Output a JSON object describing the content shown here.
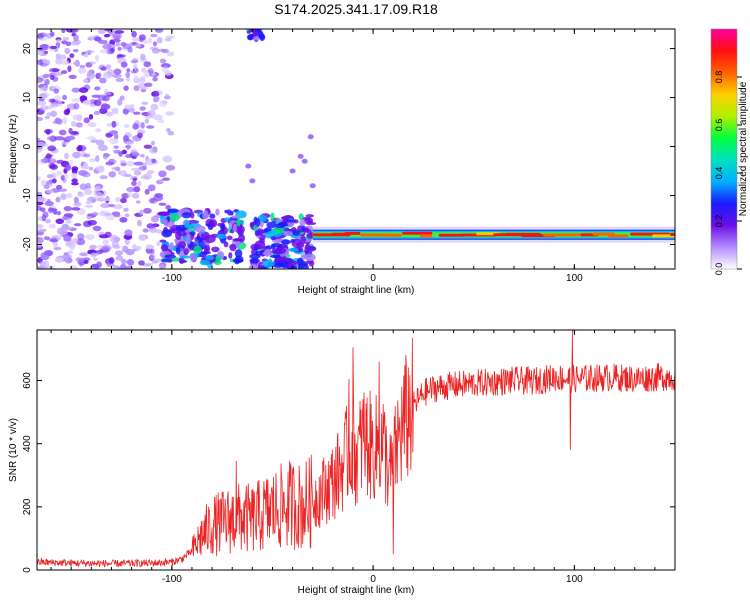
{
  "figure": {
    "title": "S174.2025.341.17.09.R18"
  },
  "chart_data": [
    {
      "type": "heatmap",
      "panel": "spectrogram",
      "xlabel": "Height of straight line (km)",
      "ylabel": "Frequency (Hz)",
      "xlim": [
        -167,
        150
      ],
      "ylim": [
        -25,
        24
      ],
      "x_ticks": [
        -100,
        0,
        100
      ],
      "y_ticks": [
        -20,
        -10,
        0,
        10,
        20
      ],
      "line_track": {
        "x_range": [
          -30,
          150
        ],
        "frequency": -18
      },
      "clusters": [
        {
          "x_range": [
            -167,
            -100
          ],
          "y_range": [
            -25,
            24
          ],
          "density": "scattered"
        },
        {
          "x_range": [
            -105,
            -65
          ],
          "y_range": [
            -24,
            -13
          ],
          "density": "strong"
        },
        {
          "x_range": [
            -60,
            -30
          ],
          "y_range": [
            -25,
            -14
          ],
          "density": "strong"
        },
        {
          "x_range": [
            -62,
            -55
          ],
          "y_range": [
            22,
            24
          ],
          "density": "small"
        }
      ],
      "colorbar": {
        "label": "Normalized spectral amplitude",
        "range": [
          0,
          1
        ],
        "ticks": [
          "0.0",
          "0.2",
          "0.4",
          "0.6",
          "0.8"
        ],
        "colors": [
          "#ffffff",
          "#b48cff",
          "#6a0fe6",
          "#1a1aff",
          "#00b0ff",
          "#00e0c0",
          "#00ff40",
          "#b0f000",
          "#ffd000",
          "#ff6000",
          "#ff1010",
          "#ff00a0"
        ]
      }
    },
    {
      "type": "line",
      "panel": "snr",
      "xlabel": "Height of straight line (km)",
      "ylabel": "SNR (10 * v/v)",
      "xlim": [
        -167,
        150
      ],
      "ylim": [
        0,
        760
      ],
      "x_ticks": [
        -100,
        0,
        100
      ],
      "y_ticks": [
        0,
        200,
        400,
        600
      ],
      "series": [
        {
          "name": "SNR",
          "color": "#ee2222",
          "x": [
            -167,
            -150,
            -130,
            -110,
            -100,
            -95,
            -90,
            -85,
            -80,
            -75,
            -70,
            -65,
            -60,
            -55,
            -50,
            -45,
            -40,
            -35,
            -30,
            -25,
            -20,
            -15,
            -12,
            -10,
            -8,
            -5,
            0,
            5,
            8,
            10,
            12,
            15,
            20,
            25,
            30,
            40,
            50,
            60,
            70,
            80,
            90,
            100,
            110,
            120,
            130,
            140,
            150
          ],
          "values": [
            25,
            22,
            20,
            22,
            25,
            35,
            60,
            110,
            140,
            150,
            160,
            165,
            160,
            175,
            190,
            200,
            210,
            200,
            220,
            250,
            280,
            330,
            380,
            400,
            350,
            420,
            380,
            400,
            300,
            330,
            400,
            460,
            520,
            560,
            575,
            585,
            590,
            595,
            600,
            598,
            610,
            605,
            608,
            610,
            605,
            610,
            612
          ],
          "spikes": [
            {
              "x": -68,
              "value": 345
            },
            {
              "x": -10,
              "value": 705
            },
            {
              "x": -12,
              "value": 605
            },
            {
              "x": 3,
              "value": 660
            },
            {
              "x": 10,
              "value": 50
            },
            {
              "x": 98,
              "value": 380
            },
            {
              "x": 99,
              "value": 760
            }
          ]
        }
      ]
    }
  ]
}
